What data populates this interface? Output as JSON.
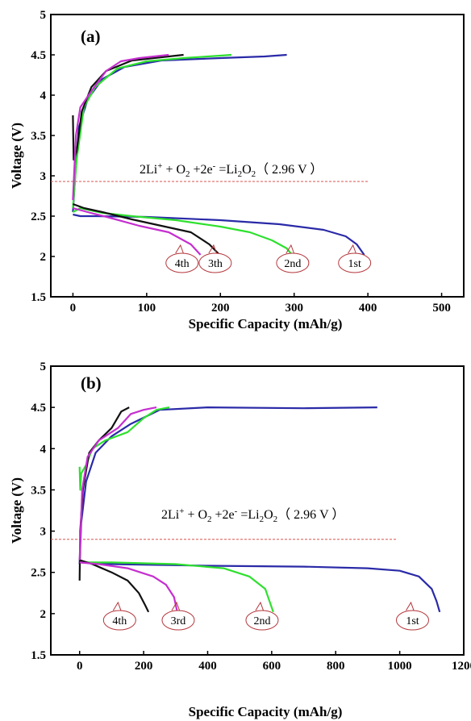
{
  "chart_data": [
    {
      "type": "line",
      "panel_label": "(a)",
      "xlabel": "Specific Capacity (mAh/g)",
      "ylabel": "Voltage (V)",
      "xlim": [
        -30,
        530
      ],
      "ylim": [
        1.5,
        5.0
      ],
      "xticks": [
        "0",
        "100",
        "200",
        "300",
        "400",
        "500"
      ],
      "xtick_values": [
        0,
        100,
        200,
        300,
        400,
        500
      ],
      "yticks": [
        "1.5",
        "2",
        "2.5",
        "3",
        "3.5",
        "4",
        "4.5",
        "5"
      ],
      "ytick_values": [
        1.5,
        2.0,
        2.5,
        3.0,
        3.5,
        4.0,
        4.5,
        5.0
      ],
      "equilibrium": {
        "voltage": 2.93,
        "x_end": 400,
        "color": "#d9534f"
      },
      "equation": {
        "main": "2Li",
        "sup1": "+",
        "mid1": " + O",
        "sub1": "2",
        "mid2": " +2e",
        "sup2": "-",
        "mid3": " =Li",
        "sub2": "2",
        "mid4": "O",
        "sub3": "2",
        "tail": "（ 2.96 V ）"
      },
      "series": [
        {
          "color": "#2a2aa8",
          "discharge": [
            [
              0,
              2.52
            ],
            [
              10,
              2.5
            ],
            [
              30,
              2.5
            ],
            [
              100,
              2.49
            ],
            [
              200,
              2.45
            ],
            [
              280,
              2.4
            ],
            [
              340,
              2.33
            ],
            [
              370,
              2.25
            ],
            [
              385,
              2.15
            ],
            [
              395,
              2.02
            ]
          ],
          "charge": [
            [
              0,
              2.55
            ],
            [
              3,
              3.0
            ],
            [
              8,
              3.6
            ],
            [
              20,
              3.95
            ],
            [
              40,
              4.2
            ],
            [
              70,
              4.35
            ],
            [
              120,
              4.43
            ],
            [
              200,
              4.46
            ],
            [
              260,
              4.48
            ],
            [
              290,
              4.5
            ]
          ]
        },
        {
          "color": "#2ee02e",
          "discharge": [
            [
              0,
              2.55
            ],
            [
              10,
              2.6
            ],
            [
              40,
              2.54
            ],
            [
              80,
              2.5
            ],
            [
              140,
              2.45
            ],
            [
              200,
              2.37
            ],
            [
              240,
              2.3
            ],
            [
              270,
              2.2
            ],
            [
              290,
              2.1
            ],
            [
              298,
              2.01
            ]
          ],
          "charge": [
            [
              0,
              2.6
            ],
            [
              5,
              3.2
            ],
            [
              15,
              3.85
            ],
            [
              30,
              4.1
            ],
            [
              60,
              4.33
            ],
            [
              100,
              4.42
            ],
            [
              150,
              4.46
            ],
            [
              200,
              4.49
            ],
            [
              215,
              4.5
            ]
          ]
        },
        {
          "color": "#111111",
          "discharge": [
            [
              0,
              2.65
            ],
            [
              15,
              2.6
            ],
            [
              40,
              2.55
            ],
            [
              80,
              2.46
            ],
            [
              120,
              2.38
            ],
            [
              160,
              2.3
            ],
            [
              185,
              2.15
            ],
            [
              200,
              2.01
            ]
          ],
          "charge": [
            [
              0,
              3.75
            ],
            [
              1,
              3.2
            ],
            [
              5,
              3.3
            ],
            [
              12,
              3.8
            ],
            [
              25,
              4.1
            ],
            [
              45,
              4.3
            ],
            [
              80,
              4.43
            ],
            [
              120,
              4.47
            ],
            [
              150,
              4.5
            ]
          ]
        },
        {
          "color": "#c52fcf",
          "discharge": [
            [
              0,
              2.6
            ],
            [
              20,
              2.55
            ],
            [
              50,
              2.48
            ],
            [
              90,
              2.38
            ],
            [
              130,
              2.3
            ],
            [
              160,
              2.15
            ],
            [
              173,
              2.02
            ]
          ],
          "charge": [
            [
              0,
              2.7
            ],
            [
              4,
              3.5
            ],
            [
              10,
              3.85
            ],
            [
              25,
              4.05
            ],
            [
              45,
              4.3
            ],
            [
              65,
              4.42
            ],
            [
              90,
              4.46
            ],
            [
              130,
              4.5
            ]
          ]
        }
      ],
      "annotations": [
        {
          "text": "4th",
          "x": 148,
          "y": 1.92
        },
        {
          "text": "3th",
          "x": 193,
          "y": 1.92
        },
        {
          "text": "2nd",
          "x": 298,
          "y": 1.92
        },
        {
          "text": "1st",
          "x": 382,
          "y": 1.92
        }
      ]
    },
    {
      "type": "line",
      "panel_label": "(b)",
      "xlabel": "Specific Capacity (mAh/g)",
      "ylabel": "Voltage (V)",
      "xlim": [
        -90,
        1200
      ],
      "ylim": [
        1.5,
        5.0
      ],
      "xticks": [
        "0",
        "200",
        "400",
        "600",
        "800",
        "1000",
        "1200"
      ],
      "xtick_values": [
        0,
        200,
        400,
        600,
        800,
        1000,
        1200
      ],
      "yticks": [
        "1.5",
        "2",
        "2.5",
        "3",
        "3.5",
        "4",
        "4.5",
        "5"
      ],
      "ytick_values": [
        1.5,
        2.0,
        2.5,
        3.0,
        3.5,
        4.0,
        4.5,
        5.0
      ],
      "equilibrium": {
        "voltage": 2.9,
        "x_end": 990,
        "color": "#d9534f"
      },
      "equation": {
        "main": "2Li",
        "sup1": "+",
        "mid1": " + O",
        "sub1": "2",
        "mid2": " +2e",
        "sup2": "-",
        "mid3": " =Li",
        "sub2": "2",
        "mid4": "O",
        "sub3": "2",
        "tail": "（ 2.96 V ）"
      },
      "series": [
        {
          "color": "#2a2aa8",
          "discharge": [
            [
              0,
              2.62
            ],
            [
              100,
              2.6
            ],
            [
              400,
              2.58
            ],
            [
              700,
              2.57
            ],
            [
              900,
              2.55
            ],
            [
              1000,
              2.52
            ],
            [
              1060,
              2.45
            ],
            [
              1100,
              2.3
            ],
            [
              1115,
              2.15
            ],
            [
              1125,
              2.02
            ]
          ],
          "charge": [
            [
              0,
              2.6
            ],
            [
              5,
              3.1
            ],
            [
              20,
              3.6
            ],
            [
              50,
              3.95
            ],
            [
              100,
              4.15
            ],
            [
              160,
              4.3
            ],
            [
              250,
              4.47
            ],
            [
              400,
              4.5
            ],
            [
              700,
              4.49
            ],
            [
              930,
              4.5
            ]
          ]
        },
        {
          "color": "#2ee02e",
          "discharge": [
            [
              0,
              2.62
            ],
            [
              100,
              2.62
            ],
            [
              300,
              2.6
            ],
            [
              450,
              2.55
            ],
            [
              530,
              2.45
            ],
            [
              580,
              2.3
            ],
            [
              605,
              2.02
            ]
          ],
          "charge": [
            [
              0,
              3.78
            ],
            [
              2,
              3.5
            ],
            [
              5,
              3.7
            ],
            [
              20,
              3.8
            ],
            [
              40,
              4.0
            ],
            [
              80,
              4.1
            ],
            [
              150,
              4.2
            ],
            [
              200,
              4.37
            ],
            [
              240,
              4.47
            ],
            [
              280,
              4.5
            ]
          ]
        },
        {
          "color": "#111111",
          "discharge": [
            [
              0,
              2.65
            ],
            [
              40,
              2.6
            ],
            [
              100,
              2.5
            ],
            [
              150,
              2.4
            ],
            [
              185,
              2.25
            ],
            [
              205,
              2.1
            ],
            [
              215,
              2.02
            ]
          ],
          "charge": [
            [
              0,
              2.4
            ],
            [
              2,
              3.0
            ],
            [
              10,
              3.5
            ],
            [
              30,
              3.95
            ],
            [
              60,
              4.1
            ],
            [
              100,
              4.25
            ],
            [
              130,
              4.45
            ],
            [
              155,
              4.5
            ]
          ]
        },
        {
          "color": "#c52fcf",
          "discharge": [
            [
              0,
              2.62
            ],
            [
              60,
              2.6
            ],
            [
              150,
              2.55
            ],
            [
              230,
              2.45
            ],
            [
              270,
              2.35
            ],
            [
              295,
              2.2
            ],
            [
              305,
              2.02
            ]
          ],
          "charge": [
            [
              0,
              2.65
            ],
            [
              8,
              3.5
            ],
            [
              25,
              3.9
            ],
            [
              60,
              4.1
            ],
            [
              120,
              4.25
            ],
            [
              160,
              4.42
            ],
            [
              200,
              4.47
            ],
            [
              240,
              4.5
            ]
          ]
        }
      ],
      "annotations": [
        {
          "text": "4th",
          "x": 125,
          "y": 1.92
        },
        {
          "text": "3rd",
          "x": 308,
          "y": 1.92
        },
        {
          "text": "2nd",
          "x": 570,
          "y": 1.92
        },
        {
          "text": "1st",
          "x": 1040,
          "y": 1.92
        }
      ]
    }
  ]
}
